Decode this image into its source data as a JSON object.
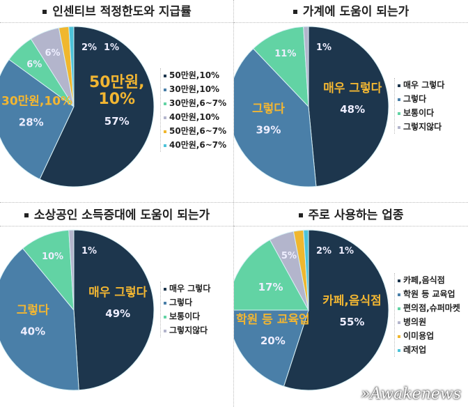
{
  "colors": [
    "#1d364d",
    "#4a7fa8",
    "#62d3a4",
    "#b3b5cc",
    "#f0b72e",
    "#4cc2d8"
  ],
  "label_color": "#f2b632",
  "watermark": "Awakenews",
  "chart_data": [
    {
      "type": "pie",
      "title": "인센티브 적정한도와 지급률",
      "categories": [
        "50만원,10%",
        "30만원,10%",
        "30만원,6~7%",
        "40만원,10%",
        "50만원,6~7%",
        "40만원,6~7%"
      ],
      "values": [
        57,
        28,
        6,
        6,
        2,
        1
      ],
      "data_labels": [
        "57%",
        "28%",
        "6%",
        "6%",
        "2%",
        "1%"
      ],
      "slice_titles": [
        "50만원,\n10%",
        "30만원,10%"
      ],
      "legend": "right"
    },
    {
      "type": "pie",
      "title": "가계에 도움이 되는가",
      "categories": [
        "매우 그렇다",
        "그렇다",
        "보통이다",
        "그렇지않다"
      ],
      "values": [
        48,
        39,
        11,
        1
      ],
      "data_labels": [
        "48%",
        "39%",
        "11%",
        "1%"
      ],
      "slice_titles": [
        "매우 그렇다",
        "그렇다"
      ],
      "legend": "right"
    },
    {
      "type": "pie",
      "title": "소상공인 소득증대에 도움이 되는가",
      "categories": [
        "매우 그렇다",
        "그렇다",
        "보통이다",
        "그렇지않다"
      ],
      "values": [
        49,
        40,
        10,
        1
      ],
      "data_labels": [
        "49%",
        "40%",
        "10%",
        "1%"
      ],
      "slice_titles": [
        "매우 그렇다",
        "그렇다"
      ],
      "legend": "right"
    },
    {
      "type": "pie",
      "title": "주로 사용하는 업종",
      "categories": [
        "카페,음식점",
        "학원 등 교육업",
        "편의점,슈퍼마켓",
        "병의원",
        "이미용업",
        "레저업"
      ],
      "values": [
        55,
        20,
        17,
        5,
        2,
        1
      ],
      "data_labels": [
        "55%",
        "20%",
        "17%",
        "5%",
        "2%",
        "1%"
      ],
      "slice_titles": [
        "카페,음식점",
        "학원 등 교육업"
      ],
      "legend": "right"
    }
  ]
}
